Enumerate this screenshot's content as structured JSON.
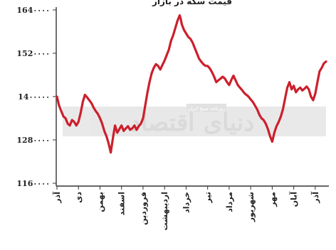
{
  "chart_data": {
    "type": "line",
    "title": "قیمت سکه در بازار",
    "xlabel": "",
    "ylabel": "",
    "ylim": [
      1160000,
      1640000
    ],
    "yticks": [
      1160000,
      1280000,
      1400000,
      1520000,
      1640000
    ],
    "ytick_labels": [
      "116۰۰۰۰",
      "128۰۰۰۰",
      "14۰۰۰۰۰",
      "152۰۰۰۰",
      "164۰۰۰۰"
    ],
    "x_categories": [
      "آذر",
      "دی",
      "بهمن",
      "اسفند",
      "فروردین",
      "اردیبهشت",
      "خرداد",
      "تیر",
      "مرداد",
      "شهریور",
      "مهر",
      "آبان",
      "آذر"
    ],
    "grid": false,
    "colors": {
      "line": "#cc1f2c",
      "axis": "#333333"
    },
    "series": [
      {
        "name": "",
        "points": [
          [
            0.0,
            1400000
          ],
          [
            0.1,
            1375000
          ],
          [
            0.2,
            1360000
          ],
          [
            0.3,
            1345000
          ],
          [
            0.4,
            1340000
          ],
          [
            0.5,
            1325000
          ],
          [
            0.6,
            1320000
          ],
          [
            0.7,
            1335000
          ],
          [
            0.8,
            1330000
          ],
          [
            0.9,
            1320000
          ],
          [
            1.0,
            1330000
          ],
          [
            1.1,
            1355000
          ],
          [
            1.2,
            1385000
          ],
          [
            1.3,
            1405000
          ],
          [
            1.4,
            1398000
          ],
          [
            1.5,
            1390000
          ],
          [
            1.6,
            1382000
          ],
          [
            1.7,
            1370000
          ],
          [
            1.8,
            1360000
          ],
          [
            1.9,
            1352000
          ],
          [
            2.0,
            1340000
          ],
          [
            2.1,
            1325000
          ],
          [
            2.2,
            1305000
          ],
          [
            2.3,
            1290000
          ],
          [
            2.4,
            1270000
          ],
          [
            2.5,
            1245000
          ],
          [
            2.6,
            1285000
          ],
          [
            2.7,
            1320000
          ],
          [
            2.8,
            1300000
          ],
          [
            2.9,
            1310000
          ],
          [
            3.0,
            1320000
          ],
          [
            3.1,
            1305000
          ],
          [
            3.2,
            1312000
          ],
          [
            3.3,
            1318000
          ],
          [
            3.4,
            1308000
          ],
          [
            3.5,
            1312000
          ],
          [
            3.6,
            1320000
          ],
          [
            3.7,
            1308000
          ],
          [
            3.8,
            1318000
          ],
          [
            3.9,
            1325000
          ],
          [
            4.0,
            1340000
          ],
          [
            4.1,
            1375000
          ],
          [
            4.2,
            1410000
          ],
          [
            4.3,
            1440000
          ],
          [
            4.4,
            1465000
          ],
          [
            4.5,
            1480000
          ],
          [
            4.6,
            1490000
          ],
          [
            4.7,
            1485000
          ],
          [
            4.8,
            1475000
          ],
          [
            4.9,
            1488000
          ],
          [
            5.0,
            1500000
          ],
          [
            5.1,
            1515000
          ],
          [
            5.2,
            1530000
          ],
          [
            5.3,
            1555000
          ],
          [
            5.4,
            1570000
          ],
          [
            5.5,
            1590000
          ],
          [
            5.6,
            1610000
          ],
          [
            5.7,
            1625000
          ],
          [
            5.75,
            1615000
          ],
          [
            5.8,
            1600000
          ],
          [
            5.9,
            1585000
          ],
          [
            6.0,
            1575000
          ],
          [
            6.1,
            1565000
          ],
          [
            6.2,
            1560000
          ],
          [
            6.3,
            1550000
          ],
          [
            6.4,
            1535000
          ],
          [
            6.5,
            1520000
          ],
          [
            6.6,
            1505000
          ],
          [
            6.7,
            1497000
          ],
          [
            6.8,
            1490000
          ],
          [
            6.9,
            1485000
          ],
          [
            7.0,
            1485000
          ],
          [
            7.1,
            1478000
          ],
          [
            7.2,
            1468000
          ],
          [
            7.3,
            1455000
          ],
          [
            7.4,
            1440000
          ],
          [
            7.5,
            1445000
          ],
          [
            7.6,
            1450000
          ],
          [
            7.7,
            1455000
          ],
          [
            7.8,
            1450000
          ],
          [
            7.9,
            1440000
          ],
          [
            8.0,
            1432000
          ],
          [
            8.1,
            1446000
          ],
          [
            8.2,
            1458000
          ],
          [
            8.3,
            1445000
          ],
          [
            8.4,
            1432000
          ],
          [
            8.5,
            1425000
          ],
          [
            8.6,
            1418000
          ],
          [
            8.7,
            1410000
          ],
          [
            8.8,
            1405000
          ],
          [
            8.9,
            1400000
          ],
          [
            9.0,
            1392000
          ],
          [
            9.1,
            1385000
          ],
          [
            9.2,
            1375000
          ],
          [
            9.3,
            1365000
          ],
          [
            9.4,
            1350000
          ],
          [
            9.5,
            1340000
          ],
          [
            9.6,
            1335000
          ],
          [
            9.7,
            1325000
          ],
          [
            9.8,
            1310000
          ],
          [
            9.9,
            1290000
          ],
          [
            10.0,
            1275000
          ],
          [
            10.1,
            1300000
          ],
          [
            10.2,
            1318000
          ],
          [
            10.3,
            1330000
          ],
          [
            10.4,
            1345000
          ],
          [
            10.5,
            1365000
          ],
          [
            10.6,
            1395000
          ],
          [
            10.7,
            1425000
          ],
          [
            10.8,
            1440000
          ],
          [
            10.9,
            1420000
          ],
          [
            11.0,
            1430000
          ],
          [
            11.1,
            1412000
          ],
          [
            11.2,
            1420000
          ],
          [
            11.3,
            1425000
          ],
          [
            11.4,
            1417000
          ],
          [
            11.5,
            1422000
          ],
          [
            11.6,
            1428000
          ],
          [
            11.7,
            1420000
          ],
          [
            11.8,
            1400000
          ],
          [
            11.9,
            1390000
          ],
          [
            12.0,
            1408000
          ],
          [
            12.1,
            1440000
          ],
          [
            12.2,
            1470000
          ],
          [
            12.3,
            1480000
          ],
          [
            12.4,
            1492000
          ],
          [
            12.5,
            1497000
          ]
        ]
      }
    ],
    "watermark": {
      "text": "دنیای اقتصاد",
      "subtext": "روزنامه صبح ایران"
    }
  }
}
